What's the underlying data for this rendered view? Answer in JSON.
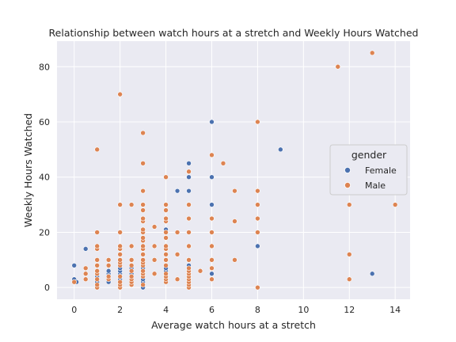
{
  "chart_data": {
    "type": "scatter",
    "title": "Relationship between watch hours at a stretch and Weekly Hours Watched",
    "xlabel": "Average watch hours at a stretch",
    "ylabel": "Weekly Hours Watched",
    "xlim": [
      -0.75,
      14.65
    ],
    "ylim": [
      -4.25,
      89.25
    ],
    "xticks": [
      0,
      2,
      4,
      6,
      8,
      10,
      12,
      14
    ],
    "yticks": [
      0,
      20,
      40,
      60,
      80
    ],
    "grid": true,
    "background": "#eaeaf2",
    "legend": {
      "title": "gender",
      "placement": "right"
    },
    "series": [
      {
        "name": "Female",
        "color": "#4c72b0",
        "points": [
          [
            0,
            8
          ],
          [
            0,
            3
          ],
          [
            0.1,
            2
          ],
          [
            0.5,
            14
          ],
          [
            1,
            2
          ],
          [
            1,
            4
          ],
          [
            1.5,
            2
          ],
          [
            1.5,
            5
          ],
          [
            1.5,
            6
          ],
          [
            2,
            1
          ],
          [
            2,
            3
          ],
          [
            2,
            5
          ],
          [
            2,
            6
          ],
          [
            2,
            7
          ],
          [
            2.5,
            5
          ],
          [
            2.5,
            7
          ],
          [
            3,
            0
          ],
          [
            3,
            2
          ],
          [
            3,
            3
          ],
          [
            3,
            7
          ],
          [
            4,
            6
          ],
          [
            4,
            7
          ],
          [
            4,
            10
          ],
          [
            4,
            21
          ],
          [
            4.5,
            35
          ],
          [
            5,
            8
          ],
          [
            5,
            10
          ],
          [
            5,
            35
          ],
          [
            5,
            40
          ],
          [
            5,
            45
          ],
          [
            6,
            5
          ],
          [
            6,
            30
          ],
          [
            6,
            40
          ],
          [
            6,
            60
          ],
          [
            8,
            15
          ],
          [
            9,
            50
          ],
          [
            13,
            5
          ]
        ]
      },
      {
        "name": "Male",
        "color": "#dd8452",
        "points": [
          [
            0,
            2
          ],
          [
            0.5,
            3
          ],
          [
            0.5,
            5
          ],
          [
            0.5,
            7
          ],
          [
            1,
            0
          ],
          [
            1,
            1
          ],
          [
            1,
            3
          ],
          [
            1,
            5
          ],
          [
            1,
            6
          ],
          [
            1,
            8
          ],
          [
            1,
            10
          ],
          [
            1,
            14
          ],
          [
            1,
            15
          ],
          [
            1,
            20
          ],
          [
            1,
            50
          ],
          [
            1.5,
            3
          ],
          [
            1.5,
            4
          ],
          [
            1.5,
            8
          ],
          [
            1.5,
            10
          ],
          [
            2,
            0
          ],
          [
            2,
            1
          ],
          [
            2,
            2
          ],
          [
            2,
            4
          ],
          [
            2,
            8
          ],
          [
            2,
            9
          ],
          [
            2,
            10
          ],
          [
            2,
            12
          ],
          [
            2,
            14
          ],
          [
            2,
            15
          ],
          [
            2,
            20
          ],
          [
            2,
            30
          ],
          [
            2,
            70
          ],
          [
            2.5,
            1
          ],
          [
            2.5,
            2
          ],
          [
            2.5,
            3
          ],
          [
            2.5,
            4
          ],
          [
            2.5,
            6
          ],
          [
            2.5,
            8
          ],
          [
            2.5,
            10
          ],
          [
            2.5,
            15
          ],
          [
            2.5,
            30
          ],
          [
            3,
            1
          ],
          [
            3,
            4
          ],
          [
            3,
            5
          ],
          [
            3,
            6
          ],
          [
            3,
            8
          ],
          [
            3,
            9
          ],
          [
            3,
            10
          ],
          [
            3,
            12
          ],
          [
            3,
            14
          ],
          [
            3,
            15
          ],
          [
            3,
            17
          ],
          [
            3,
            18
          ],
          [
            3,
            20
          ],
          [
            3,
            21
          ],
          [
            3,
            24
          ],
          [
            3,
            25
          ],
          [
            3,
            28
          ],
          [
            3,
            30
          ],
          [
            3,
            35
          ],
          [
            3,
            45
          ],
          [
            3,
            56
          ],
          [
            3.5,
            5
          ],
          [
            3.5,
            10
          ],
          [
            3.5,
            15
          ],
          [
            3.5,
            22
          ],
          [
            4,
            2
          ],
          [
            4,
            3
          ],
          [
            4,
            4
          ],
          [
            4,
            5
          ],
          [
            4,
            8
          ],
          [
            4,
            10
          ],
          [
            4,
            12
          ],
          [
            4,
            14
          ],
          [
            4,
            15
          ],
          [
            4,
            18
          ],
          [
            4,
            20
          ],
          [
            4,
            24
          ],
          [
            4,
            25
          ],
          [
            4,
            28
          ],
          [
            4,
            30
          ],
          [
            4,
            40
          ],
          [
            4.5,
            3
          ],
          [
            4.5,
            12
          ],
          [
            4.5,
            20
          ],
          [
            5,
            0
          ],
          [
            5,
            1
          ],
          [
            5,
            2
          ],
          [
            5,
            3
          ],
          [
            5,
            4
          ],
          [
            5,
            5
          ],
          [
            5,
            6
          ],
          [
            5,
            7
          ],
          [
            5,
            10
          ],
          [
            5,
            15
          ],
          [
            5,
            20
          ],
          [
            5,
            25
          ],
          [
            5,
            30
          ],
          [
            5,
            42
          ],
          [
            5.5,
            6
          ],
          [
            6,
            3
          ],
          [
            6,
            7
          ],
          [
            6,
            10
          ],
          [
            6,
            15
          ],
          [
            6,
            20
          ],
          [
            6,
            25
          ],
          [
            6,
            48
          ],
          [
            6.5,
            45
          ],
          [
            7,
            10
          ],
          [
            7,
            24
          ],
          [
            7,
            35
          ],
          [
            8,
            0
          ],
          [
            8,
            20
          ],
          [
            8,
            25
          ],
          [
            8,
            30
          ],
          [
            8,
            35
          ],
          [
            8,
            60
          ],
          [
            11.5,
            80
          ],
          [
            12,
            3
          ],
          [
            12,
            12
          ],
          [
            12,
            30
          ],
          [
            13,
            85
          ],
          [
            14,
            30
          ]
        ]
      }
    ]
  }
}
